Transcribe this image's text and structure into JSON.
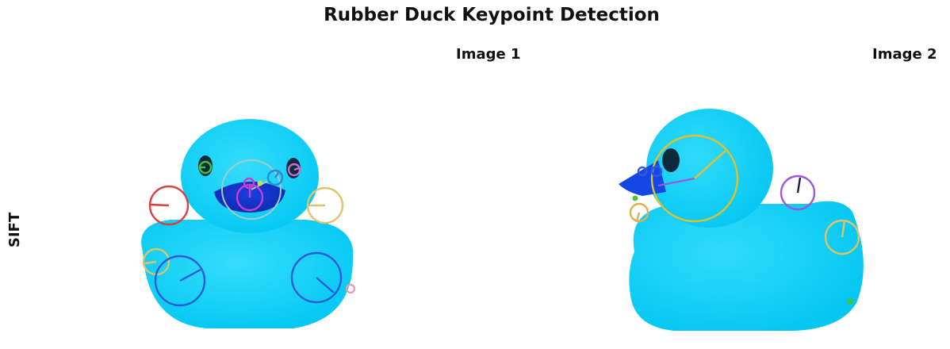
{
  "title": "Rubber Duck Keypoint Detection",
  "row_label": "SIFT",
  "panels": [
    {
      "title": "Image 1",
      "view": "front"
    },
    {
      "title": "Image 2",
      "view": "side"
    }
  ],
  "colors": {
    "duck_body": "#08cdf5",
    "duck_beak_front": "#1446e8",
    "duck_eye": "#0b2a3d",
    "keypoint_red": "#d94040",
    "keypoint_yellow": "#e0c030",
    "keypoint_tan": "#ddc36d",
    "keypoint_blue": "#2b5bd6",
    "keypoint_purple": "#9a5ad8",
    "keypoint_magenta": "#c63fd0",
    "keypoint_pink": "#e0a0b0",
    "keypoint_green": "#47c33a",
    "keypoint_gray": "#a8a8a8"
  }
}
